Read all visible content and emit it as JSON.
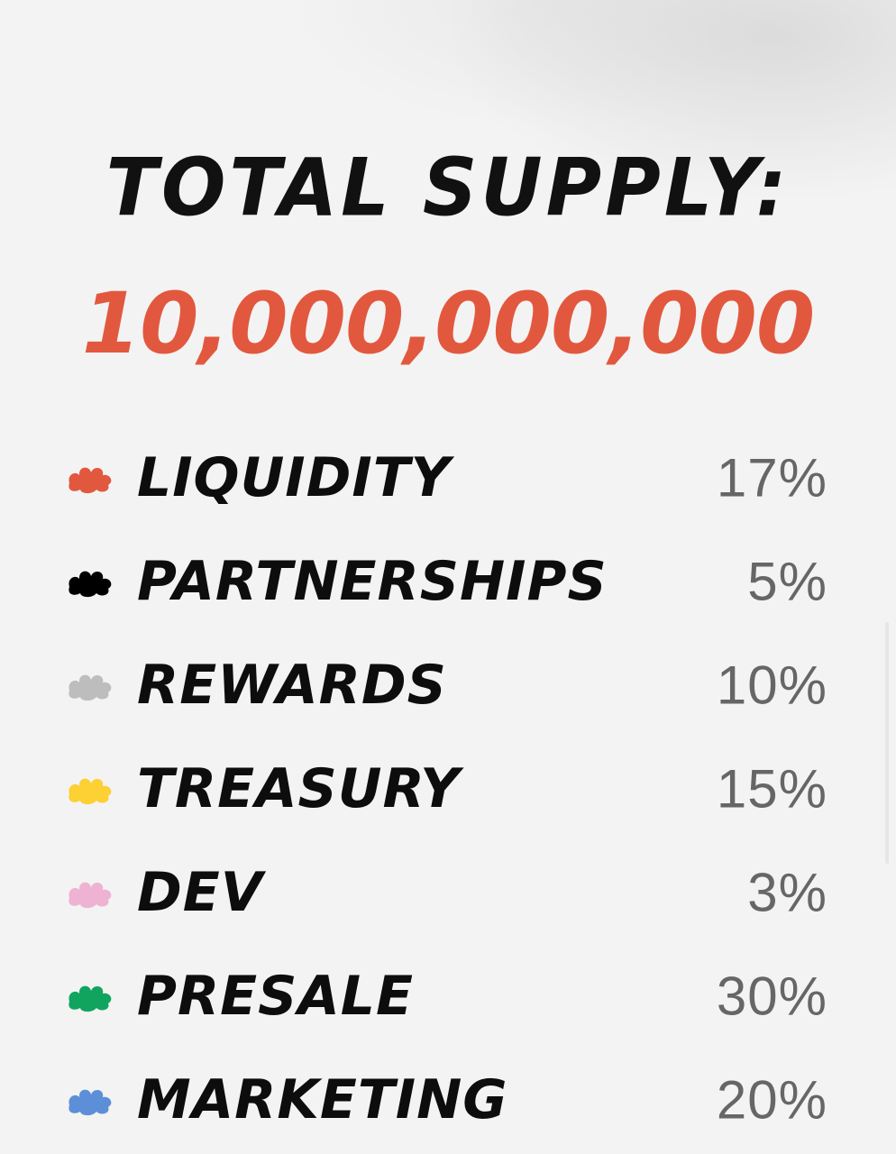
{
  "header": {
    "title": "TOTAL SUPPLY:",
    "supply": "10,000,000,000"
  },
  "allocations": [
    {
      "label": "LIQUIDITY",
      "percent": "17%",
      "color": "#e2583e"
    },
    {
      "label": "PARTNERSHIPS",
      "percent": "5%",
      "color": "#000000"
    },
    {
      "label": "REWARDS",
      "percent": "10%",
      "color": "#bdbdbd"
    },
    {
      "label": "TREASURY",
      "percent": "15%",
      "color": "#fdd033"
    },
    {
      "label": "DEV",
      "percent": "3%",
      "color": "#eeb3d3"
    },
    {
      "label": "PRESALE",
      "percent": "30%",
      "color": "#11a45e"
    },
    {
      "label": "MARKETING",
      "percent": "20%",
      "color": "#5c8fd8"
    }
  ]
}
